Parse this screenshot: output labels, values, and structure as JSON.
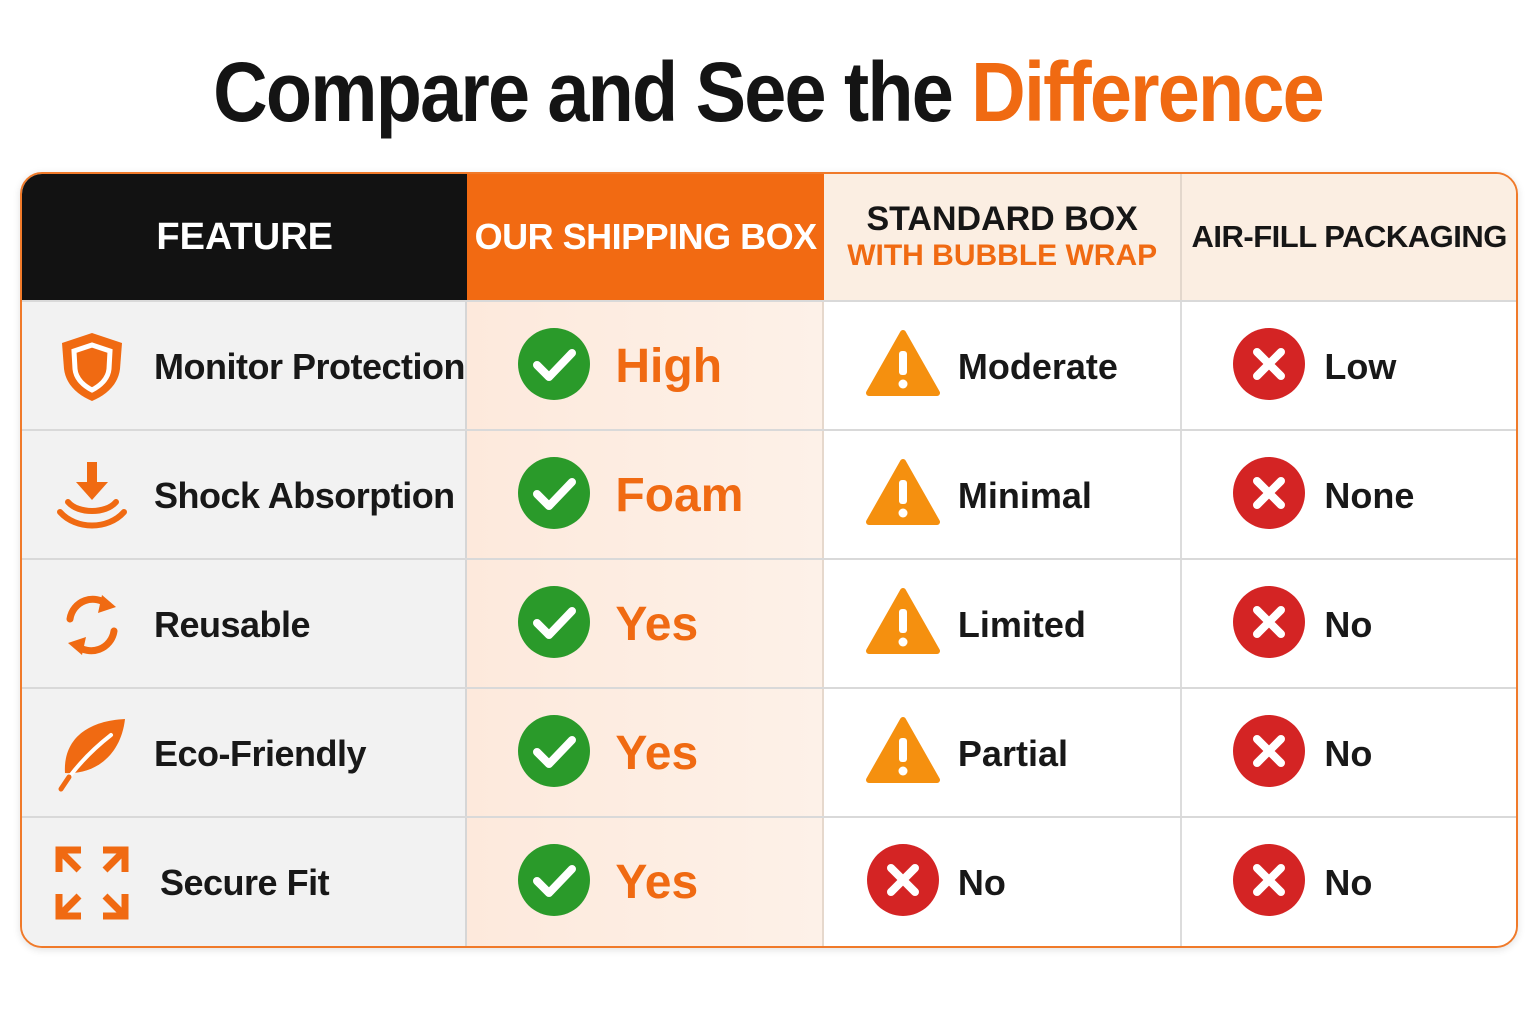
{
  "title": {
    "main": "Compare and See the ",
    "accent": "Difference"
  },
  "colors": {
    "accent": "#f06a12",
    "check": "#2a9a2a",
    "warn": "#f5900f",
    "cross": "#d42424"
  },
  "headers": {
    "feature": "FEATURE",
    "ours": "OUR SHIPPING BOX",
    "standard_line1": "STANDARD BOX",
    "standard_line2": "WITH BUBBLE WRAP",
    "airfill": "AIR-FILL PACKAGING"
  },
  "rows": [
    {
      "feature": "Monitor Protection",
      "icon": "shield-icon",
      "ours": "High",
      "ours_status": "check",
      "standard": "Moderate",
      "standard_status": "warning",
      "airfill": "Low",
      "airfill_status": "cross"
    },
    {
      "feature": "Shock Absorption",
      "icon": "shock-absorption-icon",
      "ours": "Foam",
      "ours_status": "check",
      "standard": "Minimal",
      "standard_status": "warning",
      "airfill": "None",
      "airfill_status": "cross"
    },
    {
      "feature": "Reusable",
      "icon": "recycle-icon",
      "ours": "Yes",
      "ours_status": "check",
      "standard": "Limited",
      "standard_status": "warning",
      "airfill": "No",
      "airfill_status": "cross"
    },
    {
      "feature": "Eco-Friendly",
      "icon": "leaf-icon",
      "ours": "Yes",
      "ours_status": "check",
      "standard": "Partial",
      "standard_status": "warning",
      "airfill": "No",
      "airfill_status": "cross"
    },
    {
      "feature": "Secure Fit",
      "icon": "expand-arrows-icon",
      "ours": "Yes",
      "ours_status": "check",
      "standard": "No",
      "standard_status": "cross",
      "airfill": "No",
      "airfill_status": "cross"
    }
  ]
}
